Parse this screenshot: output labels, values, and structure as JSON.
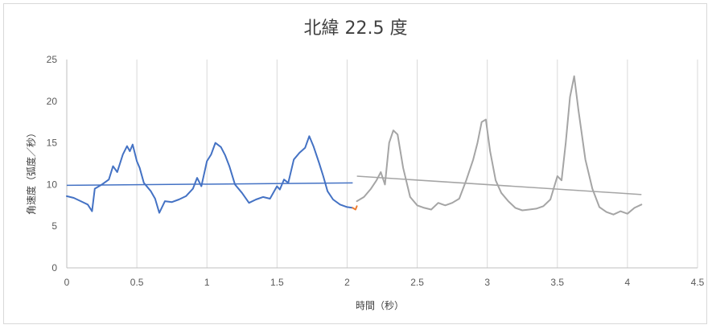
{
  "chart_data": {
    "type": "line",
    "title": "北緯 22.5 度",
    "xlabel": "時間（秒）",
    "ylabel": "角速度（弧度／秒）",
    "xlim": [
      0,
      4.5
    ],
    "ylim": [
      0,
      25
    ],
    "x_ticks": [
      "0",
      "0.5",
      "1",
      "1.5",
      "2",
      "2.5",
      "3",
      "3.5",
      "4",
      "4.5"
    ],
    "y_ticks": [
      "0",
      "5",
      "10",
      "15",
      "20",
      "25"
    ],
    "grid": "vertical",
    "legend": "none",
    "series": [
      {
        "color": "#4472c4",
        "x": [
          0,
          0.05,
          0.1,
          0.15,
          0.18,
          0.2,
          0.25,
          0.3,
          0.33,
          0.36,
          0.4,
          0.43,
          0.45,
          0.47,
          0.5,
          0.52,
          0.55,
          0.6,
          0.63,
          0.66,
          0.7,
          0.75,
          0.8,
          0.85,
          0.9,
          0.93,
          0.96,
          1.0,
          1.03,
          1.06,
          1.1,
          1.13,
          1.16,
          1.2,
          1.25,
          1.3,
          1.35,
          1.4,
          1.45,
          1.5,
          1.52,
          1.55,
          1.58,
          1.62,
          1.66,
          1.7,
          1.73,
          1.76,
          1.8,
          1.83,
          1.86,
          1.9,
          1.95,
          2.0,
          2.04
        ],
        "y": [
          8.6,
          8.4,
          8.0,
          7.6,
          6.8,
          9.5,
          10.0,
          10.6,
          12.2,
          11.5,
          13.6,
          14.6,
          14.0,
          14.8,
          12.8,
          12.0,
          10.2,
          9.2,
          8.3,
          6.6,
          8.0,
          7.9,
          8.2,
          8.6,
          9.5,
          10.8,
          9.8,
          12.8,
          13.6,
          15.0,
          14.5,
          13.5,
          12.2,
          10.0,
          9.0,
          7.8,
          8.2,
          8.5,
          8.3,
          9.8,
          9.4,
          10.6,
          10.2,
          13.0,
          13.8,
          14.4,
          15.8,
          14.6,
          12.6,
          11.0,
          9.2,
          8.2,
          7.6,
          7.3,
          7.2
        ]
      },
      {
        "color": "#ed7d31",
        "x": [
          2.04,
          2.06,
          2.07
        ],
        "y": [
          7.2,
          7.0,
          7.4
        ]
      },
      {
        "color": "#a5a5a5",
        "x": [
          2.07,
          2.12,
          2.17,
          2.21,
          2.24,
          2.27,
          2.3,
          2.33,
          2.36,
          2.4,
          2.45,
          2.5,
          2.55,
          2.6,
          2.65,
          2.7,
          2.75,
          2.8,
          2.85,
          2.9,
          2.93,
          2.96,
          2.99,
          3.02,
          3.06,
          3.1,
          3.15,
          3.2,
          3.25,
          3.3,
          3.35,
          3.4,
          3.45,
          3.5,
          3.53,
          3.56,
          3.59,
          3.62,
          3.65,
          3.7,
          3.75,
          3.8,
          3.85,
          3.9,
          3.95,
          4.0,
          4.05,
          4.1
        ],
        "y": [
          8.0,
          8.5,
          9.5,
          10.5,
          11.5,
          10.0,
          15.0,
          16.5,
          16.0,
          12.0,
          8.5,
          7.5,
          7.2,
          7.0,
          7.8,
          7.5,
          7.8,
          8.3,
          10.5,
          13.0,
          15.0,
          17.5,
          17.8,
          14.0,
          10.5,
          9.0,
          8.0,
          7.2,
          6.9,
          7.0,
          7.1,
          7.4,
          8.2,
          11.0,
          10.5,
          15.0,
          20.5,
          23.0,
          19.0,
          13.0,
          9.5,
          7.3,
          6.7,
          6.4,
          6.8,
          6.5,
          7.2,
          7.6
        ]
      }
    ],
    "trendlines": [
      {
        "color": "#4472c4",
        "x": [
          0,
          2.04
        ],
        "y": [
          9.9,
          10.2
        ]
      },
      {
        "color": "#a5a5a5",
        "x": [
          2.07,
          4.1
        ],
        "y": [
          11.0,
          8.8
        ]
      }
    ]
  }
}
